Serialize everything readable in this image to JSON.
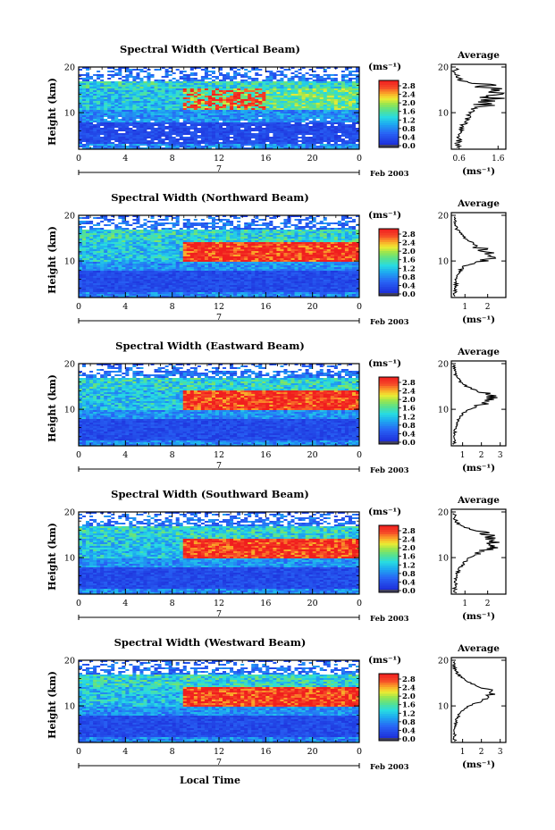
{
  "figure": {
    "xlabel": "Local Time",
    "x_ticks": [
      "0",
      "4",
      "8",
      "12",
      "16",
      "20",
      "0"
    ],
    "date_tick": "7",
    "date_label": "Feb 2003",
    "ylabel": "Height (km)",
    "y_ticks": [
      "20",
      "10"
    ],
    "colorbar_unit": "(ms⁻¹)",
    "colorbar_ticks": [
      "2.8",
      "2.4",
      "2.0",
      "1.6",
      "1.2",
      "0.8",
      "0.4",
      "0.0"
    ],
    "colors": {
      "background": "#1e3cd8",
      "low": "#2a5cf0",
      "mid": "#25c8e8",
      "green": "#6fe08a",
      "yellow": "#f0e040",
      "high": "#f02828",
      "missing": "#ffffff"
    }
  },
  "chart_data": [
    {
      "type": "heatmap",
      "title": "Spectral Width (Vertical Beam)",
      "xlabel": "Local Time",
      "ylabel": "Height (km)",
      "xlim": [
        0,
        24
      ],
      "ylim": [
        2,
        20
      ],
      "clim": [
        0,
        3
      ],
      "profile": {
        "title": "Average",
        "x_ticks": [
          "0.6",
          "1.6"
        ],
        "xlabel": "(ms⁻¹)",
        "xlim": [
          0.4,
          1.8
        ],
        "heights": [
          2,
          3,
          4,
          5,
          6,
          7,
          8,
          9,
          10,
          11,
          12,
          13,
          14,
          15,
          16,
          17,
          18,
          19
        ],
        "values": [
          0.6,
          0.55,
          0.6,
          0.6,
          0.62,
          0.68,
          0.75,
          0.85,
          0.9,
          1.0,
          1.35,
          1.45,
          1.5,
          1.4,
          1.25,
          0.65,
          0.55,
          0.5
        ]
      }
    },
    {
      "type": "heatmap",
      "title": "Spectral Width (Northward Beam)",
      "xlabel": "Local Time",
      "ylabel": "Height (km)",
      "xlim": [
        0,
        24
      ],
      "ylim": [
        2,
        20
      ],
      "clim": [
        0,
        3
      ],
      "profile": {
        "title": "Average",
        "x_ticks": [
          "1",
          "2"
        ],
        "xlabel": "(ms⁻¹)",
        "xlim": [
          0.4,
          2.8
        ],
        "heights": [
          2,
          3,
          4,
          5,
          6,
          7,
          8,
          9,
          10,
          11,
          12,
          13,
          14,
          15,
          16,
          17,
          18,
          19
        ],
        "values": [
          0.6,
          0.55,
          0.6,
          0.6,
          0.62,
          0.7,
          0.8,
          1.0,
          1.8,
          2.2,
          2.0,
          1.6,
          1.3,
          1.0,
          0.8,
          0.65,
          0.6,
          0.55
        ]
      }
    },
    {
      "type": "heatmap",
      "title": "Spectral Width (Eastward Beam)",
      "xlabel": "Local Time",
      "ylabel": "Height (km)",
      "xlim": [
        0,
        24
      ],
      "ylim": [
        2,
        20
      ],
      "clim": [
        0,
        3
      ],
      "profile": {
        "title": "Average",
        "x_ticks": [
          "1",
          "2",
          "3"
        ],
        "xlabel": "(ms⁻¹)",
        "xlim": [
          0.4,
          3.3
        ],
        "heights": [
          2,
          3,
          4,
          5,
          6,
          7,
          8,
          9,
          10,
          11,
          12,
          13,
          14,
          15,
          16,
          17,
          18,
          19
        ],
        "values": [
          0.6,
          0.55,
          0.6,
          0.6,
          0.62,
          0.7,
          0.8,
          1.0,
          1.4,
          2.0,
          2.4,
          2.6,
          1.8,
          1.2,
          0.9,
          0.7,
          0.6,
          0.55
        ]
      }
    },
    {
      "type": "heatmap",
      "title": "Spectral Width (Southward Beam)",
      "xlabel": "Local Time",
      "ylabel": "Height (km)",
      "xlim": [
        0,
        24
      ],
      "ylim": [
        2,
        20
      ],
      "clim": [
        0,
        3
      ],
      "profile": {
        "title": "Average",
        "x_ticks": [
          "1",
          "2"
        ],
        "xlabel": "(ms⁻¹)",
        "xlim": [
          0.4,
          2.8
        ],
        "heights": [
          2,
          3,
          4,
          5,
          6,
          7,
          8,
          9,
          10,
          11,
          12,
          13,
          14,
          15,
          16,
          17,
          18,
          19
        ],
        "values": [
          0.6,
          0.55,
          0.6,
          0.6,
          0.62,
          0.7,
          0.8,
          1.0,
          1.2,
          1.7,
          2.1,
          2.3,
          2.2,
          2.1,
          1.4,
          0.8,
          0.6,
          0.55
        ]
      }
    },
    {
      "type": "heatmap",
      "title": "Spectral Width (Westward Beam)",
      "xlabel": "Local Time",
      "ylabel": "Height (km)",
      "xlim": [
        0,
        24
      ],
      "ylim": [
        2,
        20
      ],
      "clim": [
        0,
        3
      ],
      "profile": {
        "title": "Average",
        "x_ticks": [
          "1",
          "2",
          "3"
        ],
        "xlabel": "(ms⁻¹)",
        "xlim": [
          0.4,
          3.3
        ],
        "heights": [
          2,
          3,
          4,
          5,
          6,
          7,
          8,
          9,
          10,
          11,
          12,
          13,
          14,
          15,
          16,
          17,
          18,
          19
        ],
        "values": [
          0.6,
          0.55,
          0.6,
          0.6,
          0.62,
          0.7,
          0.8,
          1.0,
          1.3,
          2.0,
          2.4,
          2.5,
          2.0,
          1.4,
          1.0,
          0.75,
          0.6,
          0.55
        ]
      }
    }
  ]
}
